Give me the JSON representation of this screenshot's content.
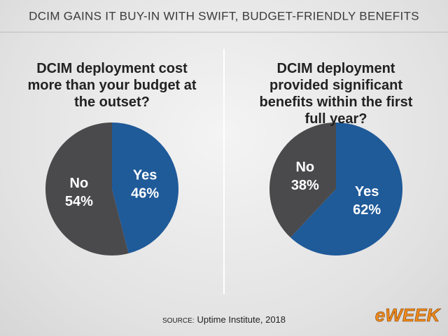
{
  "title": "DCIM GAINS IT BUY-IN WITH SWIFT, BUDGET-FRIENDLY BENEFITS",
  "chart_data": [
    {
      "type": "pie",
      "title": "DCIM deployment cost more than your budget at the outset?",
      "categories": [
        "Yes",
        "No"
      ],
      "values": [
        46,
        54
      ],
      "value_labels": [
        "46%",
        "54%"
      ],
      "colors": [
        "#1f5a99",
        "#4a4a4c"
      ]
    },
    {
      "type": "pie",
      "title": "DCIM deployment provided significant benefits within the first full year?",
      "categories": [
        "Yes",
        "No"
      ],
      "values": [
        62,
        38
      ],
      "value_labels": [
        "62%",
        "38%"
      ],
      "colors": [
        "#1f5a99",
        "#4a4a4c"
      ]
    }
  ],
  "source": {
    "label": "SOURCE:",
    "text": "Uptime Institute, 2018"
  },
  "logo": "eWEEK"
}
